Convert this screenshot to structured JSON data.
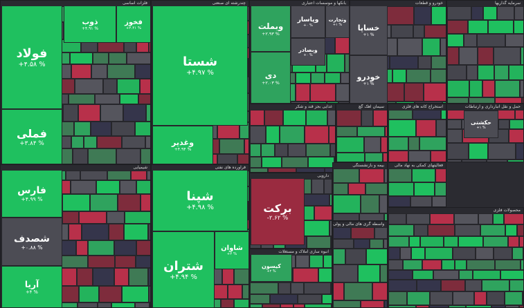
{
  "sectors": [
    {
      "title": "فلزات اساسی",
      "tiles": [
        {
          "label": "فولاد",
          "change": "+۴.۵۸ %",
          "color": "#1fc05f"
        },
        {
          "label": "فملی",
          "change": "+۳.۸۴ %",
          "color": "#1fc05f"
        },
        {
          "label": "ذوب",
          "change": "+۴.۹۱ %",
          "color": "#1fc05f"
        },
        {
          "label": "فخوز",
          "change": "+۴.۴۱ %",
          "color": "#1fc05f"
        }
      ]
    },
    {
      "title": "چندرشته ای صنعتی",
      "tiles": [
        {
          "label": "شستا",
          "change": "+۴.۹۷ %",
          "color": "#1fc05f"
        },
        {
          "label": "وغدیر",
          "change": "+۴.۹۴ %",
          "color": "#1fc05f"
        }
      ]
    },
    {
      "title": "بانکها و موسسات اعتباری",
      "tiles": [
        {
          "label": "وبملت",
          "change": "+۲.۹۳ %",
          "color": "#2fa35e"
        },
        {
          "label": "دی",
          "change": "+۲.۰۳ %",
          "color": "#2fa35e"
        },
        {
          "label": "وپاسار",
          "change": "+۰ %",
          "color": "#4c4c54"
        },
        {
          "label": "وتجارت",
          "change": "+۱ %",
          "color": "#4c4c54"
        },
        {
          "label": "وبصادر",
          "change": "+۰ %",
          "color": "#4c4c54"
        }
      ]
    },
    {
      "title": "خودرو و قطعات",
      "tiles": [
        {
          "label": "خساپا",
          "change": "+۱ %",
          "color": "#4c4c54"
        },
        {
          "label": "خودرو",
          "change": "+۱ %",
          "color": "#4c4c54"
        }
      ]
    },
    {
      "title": "سرمایه گذاریها",
      "tiles": []
    },
    {
      "title": "شیمیایی",
      "tiles": [
        {
          "label": "فارس",
          "change": "+۴.۹۹ %",
          "color": "#1fc05f"
        },
        {
          "label": "شصدف",
          "change": "+۰.۸۸ %",
          "color": "#4c4c54"
        },
        {
          "label": "آریا",
          "change": "+۴ %",
          "color": "#1fc05f"
        }
      ]
    },
    {
      "title": "فراورده های نفتی",
      "tiles": [
        {
          "label": "شپنا",
          "change": "+۴.۹۸ %",
          "color": "#1fc05f"
        },
        {
          "label": "شتران",
          "change": "+۴.۹۴ %",
          "color": "#1fc05f"
        },
        {
          "label": "شاوان",
          "change": "+۴ %",
          "color": "#1fc05f"
        }
      ]
    },
    {
      "title": "غذایی بجز قند و شکر",
      "tiles": []
    },
    {
      "title": "سیمان آهک گچ",
      "tiles": []
    },
    {
      "title": "استخراج کانه های فلزی",
      "tiles": []
    },
    {
      "title": "حمل و نقل انبارداری و ارتباطات",
      "tiles": [
        {
          "label": "حکشتی",
          "change": "+۱ %",
          "color": "#4c4c54"
        }
      ]
    },
    {
      "title": "دارویی",
      "tiles": [
        {
          "label": "برکت",
          "change": "-۲.۶۲ %",
          "color": "#9a2b40"
        }
      ]
    },
    {
      "title": "بیمه و بازنشستگی",
      "tiles": []
    },
    {
      "title": "فعالیتهای کمکی به نهاد مالی",
      "tiles": []
    },
    {
      "title": "انبوه سازی املاک و مستغلات",
      "tiles": [
        {
          "label": "کیسون",
          "change": "+۲ %",
          "color": "#2fa35e"
        }
      ]
    },
    {
      "title": "واسطه گری های مالی و پولی",
      "tiles": []
    },
    {
      "title": "محصولات فلزی",
      "tiles": []
    }
  ]
}
